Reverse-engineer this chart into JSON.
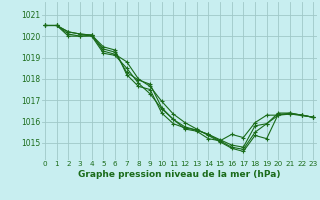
{
  "title": "Graphe pression niveau de la mer (hPa)",
  "background_color": "#c8eef0",
  "grid_color": "#a0c8c8",
  "line_color": "#1a6b1a",
  "marker_color": "#1a6b1a",
  "xlim": [
    -0.3,
    23.3
  ],
  "ylim": [
    1014.2,
    1021.6
  ],
  "yticks": [
    1015,
    1016,
    1017,
    1018,
    1019,
    1020,
    1021
  ],
  "xticks": [
    0,
    1,
    2,
    3,
    4,
    5,
    6,
    7,
    8,
    9,
    10,
    11,
    12,
    13,
    14,
    15,
    16,
    17,
    18,
    19,
    20,
    21,
    22,
    23
  ],
  "series": [
    [
      1020.5,
      1020.5,
      1020.0,
      1020.0,
      1020.0,
      1019.2,
      1019.1,
      1018.5,
      1017.8,
      1017.3,
      1016.6,
      1016.1,
      1015.65,
      1015.55,
      1015.2,
      1015.1,
      1015.4,
      1015.25,
      1015.95,
      1016.3,
      1016.3,
      1016.35,
      1016.3,
      1016.2
    ],
    [
      1020.5,
      1020.5,
      1020.1,
      1020.0,
      1020.05,
      1019.3,
      1019.15,
      1018.8,
      1018.0,
      1017.65,
      1016.95,
      1016.35,
      1015.95,
      1015.65,
      1015.35,
      1015.05,
      1014.75,
      1014.6,
      1015.35,
      1015.2,
      1016.35,
      1016.35,
      1016.3,
      1016.2
    ],
    [
      1020.5,
      1020.5,
      1020.2,
      1020.1,
      1020.05,
      1019.4,
      1019.25,
      1018.3,
      1017.95,
      1017.75,
      1016.65,
      1016.1,
      1015.75,
      1015.6,
      1015.4,
      1015.15,
      1014.9,
      1014.8,
      1015.8,
      1015.9,
      1016.3,
      1016.4,
      1016.3,
      1016.2
    ],
    [
      1020.5,
      1020.5,
      1020.2,
      1020.1,
      1020.05,
      1019.5,
      1019.35,
      1018.2,
      1017.65,
      1017.5,
      1016.4,
      1015.9,
      1015.7,
      1015.6,
      1015.4,
      1015.1,
      1014.8,
      1014.7,
      1015.5,
      1015.9,
      1016.4,
      1016.4,
      1016.3,
      1016.2
    ]
  ],
  "xlabel_fontsize": 6.5,
  "xtick_fontsize": 5.2,
  "ytick_fontsize": 5.5
}
